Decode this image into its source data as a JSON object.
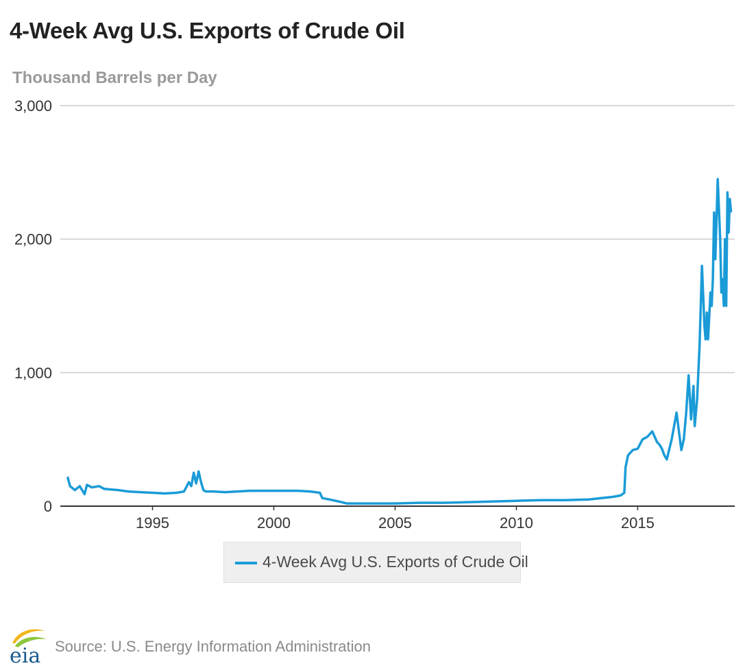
{
  "header": {
    "title": "4-Week Avg U.S. Exports of Crude Oil",
    "subtitle": "Thousand Barrels per Day"
  },
  "footer": {
    "logo_text": "eia",
    "source": "Source: U.S. Energy Information Administration"
  },
  "colors": {
    "series": "#1a9bd7",
    "grid": "#cccccc",
    "axis": "#333333",
    "logo_text": "#1a5a8c",
    "logo_swoosh_1": "#f2b51f",
    "logo_swoosh_2": "#8dc63f"
  },
  "chart_data": {
    "type": "line",
    "title": "4-Week Avg U.S. Exports of Crude Oil",
    "subtitle": "Thousand Barrels per Day",
    "xlabel": "",
    "ylabel": "Thousand Barrels per Day",
    "xlim": [
      1991.2,
      2019.0
    ],
    "ylim": [
      0,
      3000
    ],
    "yticks": [
      0,
      1000,
      2000,
      3000
    ],
    "ytick_labels": [
      "0",
      "1,000",
      "2,000",
      "3,000"
    ],
    "xticks": [
      1995,
      2000,
      2005,
      2010,
      2015
    ],
    "xtick_labels": [
      "1995",
      "2000",
      "2005",
      "2010",
      "2015"
    ],
    "grid": true,
    "legend": "bottom-center",
    "series": [
      {
        "name": "4-Week Avg U.S. Exports of Crude Oil",
        "x": [
          1991.5,
          1991.6,
          1991.8,
          1992.0,
          1992.2,
          1992.3,
          1992.5,
          1992.8,
          1993.0,
          1993.3,
          1993.6,
          1994.0,
          1994.5,
          1995.0,
          1995.5,
          1996.0,
          1996.3,
          1996.5,
          1996.6,
          1996.7,
          1996.8,
          1996.9,
          1997.0,
          1997.1,
          1997.2,
          1997.5,
          1998.0,
          1998.5,
          1999.0,
          2000.0,
          2001.0,
          2001.5,
          2001.9,
          2002.0,
          2002.3,
          2002.8,
          2003.0,
          2004.0,
          2005.0,
          2006.0,
          2007.0,
          2008.0,
          2009.0,
          2010.0,
          2011.0,
          2012.0,
          2013.0,
          2013.5,
          2014.0,
          2014.3,
          2014.45,
          2014.5,
          2014.6,
          2014.8,
          2015.0,
          2015.2,
          2015.4,
          2015.6,
          2015.8,
          2015.9,
          2016.0,
          2016.1,
          2016.2,
          2016.4,
          2016.6,
          2016.8,
          2016.9,
          2017.0,
          2017.1,
          2017.2,
          2017.3,
          2017.35,
          2017.45,
          2017.55,
          2017.65,
          2017.75,
          2017.8,
          2017.85,
          2017.9,
          2018.0,
          2018.05,
          2018.1,
          2018.15,
          2018.2,
          2018.3,
          2018.4,
          2018.45,
          2018.5,
          2018.55,
          2018.6,
          2018.65,
          2018.7,
          2018.75,
          2018.8,
          2018.85
        ],
        "values": [
          220,
          150,
          120,
          150,
          90,
          160,
          140,
          150,
          130,
          125,
          120,
          110,
          105,
          100,
          95,
          100,
          110,
          180,
          150,
          250,
          170,
          260,
          180,
          120,
          110,
          110,
          105,
          110,
          115,
          115,
          115,
          110,
          100,
          60,
          50,
          30,
          20,
          20,
          20,
          25,
          25,
          30,
          35,
          40,
          45,
          45,
          50,
          60,
          70,
          80,
          100,
          290,
          380,
          420,
          430,
          500,
          520,
          560,
          480,
          460,
          430,
          380,
          350,
          500,
          700,
          420,
          500,
          700,
          980,
          650,
          900,
          600,
          800,
          1200,
          1800,
          1350,
          1250,
          1450,
          1250,
          1600,
          1500,
          1700,
          2200,
          1850,
          2450,
          2000,
          1600,
          1700,
          1500,
          2000,
          1500,
          2350,
          2050,
          2300,
          2200
        ]
      }
    ]
  }
}
